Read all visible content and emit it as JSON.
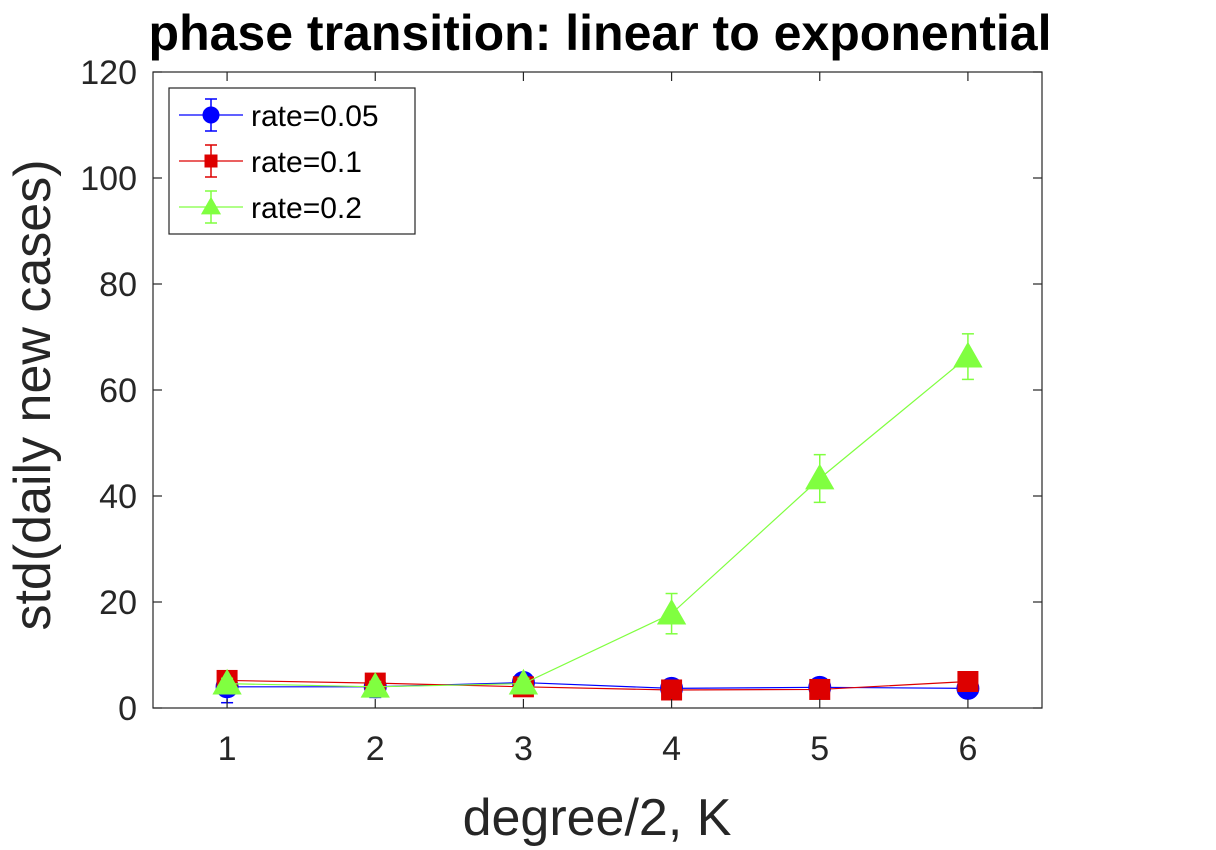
{
  "chart_data": {
    "type": "line",
    "title": "phase transition: linear to exponential",
    "xlabel": "degree/2, K",
    "ylabel": "std(daily new cases)",
    "x": [
      1,
      2,
      3,
      4,
      5,
      6
    ],
    "xlim": [
      0.5,
      6.5
    ],
    "ylim": [
      0,
      120
    ],
    "xticks": [
      "1",
      "2",
      "3",
      "4",
      "5",
      "6"
    ],
    "yticks": [
      "0",
      "20",
      "40",
      "60",
      "80",
      "100",
      "120"
    ],
    "grid": false,
    "legend_position": "top-left",
    "series": [
      {
        "name": "rate=0.05",
        "color": "#0000ff",
        "marker": "circle",
        "values": [
          4.0,
          4.0,
          4.8,
          3.7,
          3.9,
          3.7
        ],
        "errors": [
          3.0,
          2.0,
          1.5,
          1.0,
          1.0,
          1.0
        ]
      },
      {
        "name": "rate=0.1",
        "color": "#dd0000",
        "marker": "square",
        "values": [
          5.2,
          4.7,
          4.0,
          3.4,
          3.5,
          5.0
        ],
        "errors": [
          1.2,
          1.2,
          1.0,
          1.0,
          1.0,
          1.2
        ]
      },
      {
        "name": "rate=0.2",
        "color": "#80ff40",
        "marker": "triangle",
        "values": [
          4.6,
          4.0,
          4.6,
          17.8,
          43.3,
          66.3
        ],
        "errors": [
          1.0,
          1.0,
          1.0,
          3.8,
          4.5,
          4.3
        ]
      }
    ]
  }
}
